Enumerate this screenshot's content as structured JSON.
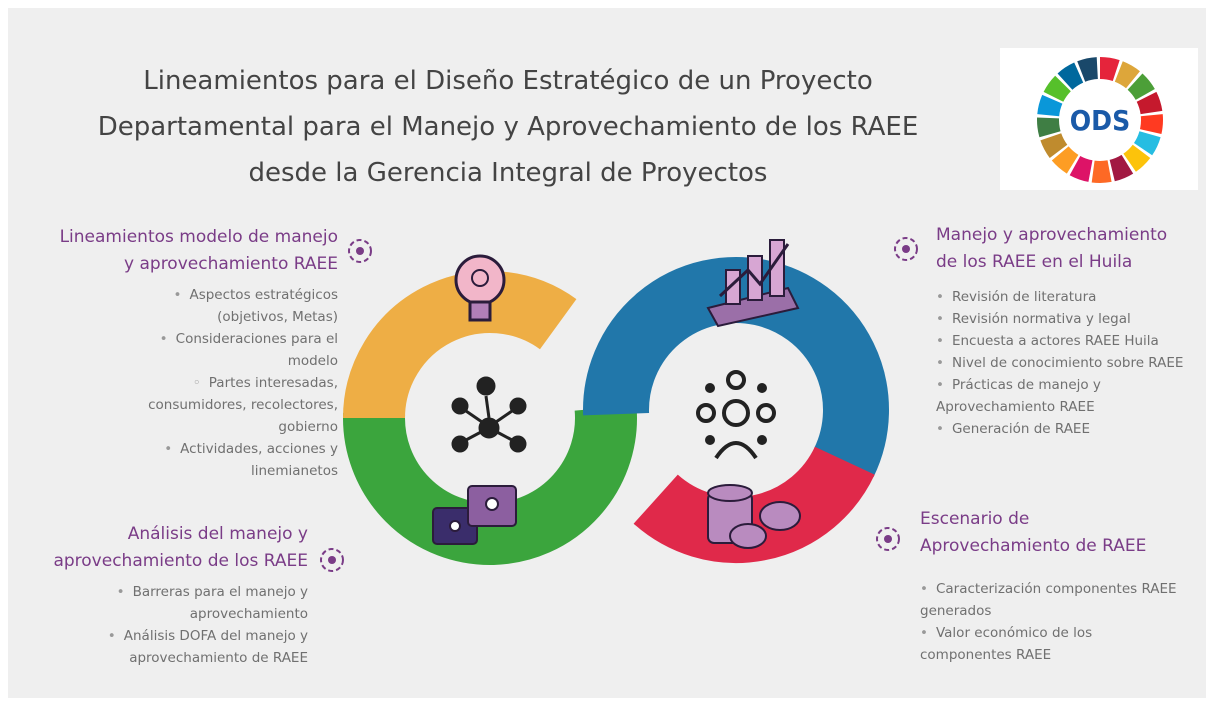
{
  "header": {
    "title": [
      "Lineamientos para el Diseño Estratégico de un Proyecto",
      "Departamental para el Manejo y Aprovechamiento de los RAEE",
      "desde la Gerencia Integral de Proyectos"
    ]
  },
  "logo": {
    "text": "ODS"
  },
  "sections": [
    {
      "heading": [
        "Lineamientos modelo de manejo",
        "y aprovechamiento RAEE"
      ],
      "items": [
        "Aspectos estratégicos (objetivos, Metas)",
        "Consideraciones para el modelo",
        "Partes interesadas, consumidores, recolectores, gobierno",
        "Actividades, acciones y linemianetos"
      ]
    },
    {
      "heading": [
        "Análisis del manejo y",
        "aprovechamiento de los RAEE"
      ],
      "items": [
        "Barreras para el manejo y aprovechamiento",
        "Análisis DOFA del manejo y aprovechamiento de RAEE"
      ]
    },
    {
      "heading": [
        "Manejo y aprovechamiento",
        "de los RAEE en el  Huila"
      ],
      "items": [
        "Revisión de literatura",
        "Revisión normativa y legal",
        "Encuesta a actores RAEE Huila",
        "Nivel de conocimiento sobre RAEE",
        "Prácticas de manejo y Aprovechamiento RAEE",
        "Generación de RAEE"
      ]
    },
    {
      "heading": [
        "Escenario de",
        "Aprovechamiento de RAEE"
      ],
      "items": [
        "Caracterización componentes RAEE generados",
        "Valor económico de los componentes RAEE"
      ]
    }
  ]
}
